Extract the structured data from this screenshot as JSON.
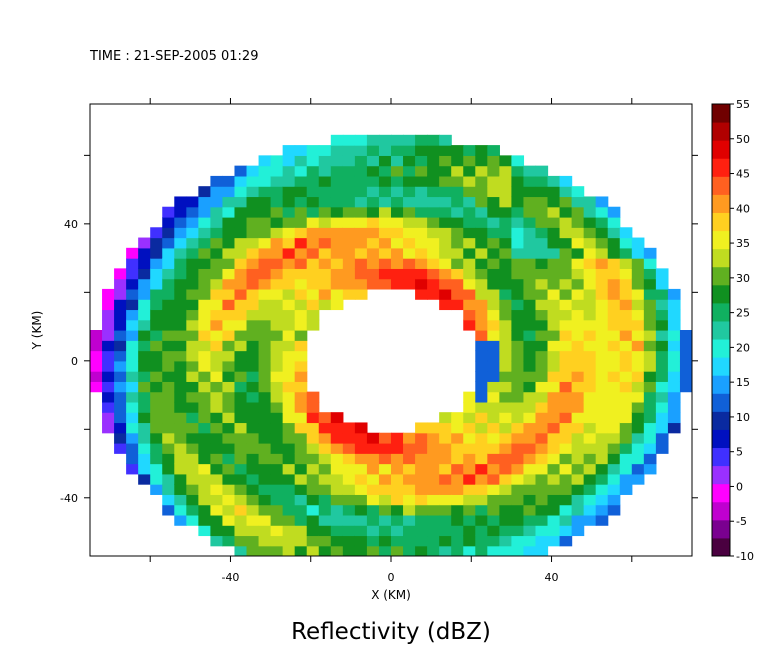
{
  "header": {
    "time_label": "TIME : 21-SEP-2005 01:29"
  },
  "chart_data": {
    "type": "heatmap",
    "title": "Reflectivity (dBZ)",
    "xlabel": "X (KM)",
    "ylabel": "Y (KM)",
    "xlim": [
      -75,
      75
    ],
    "ylim": [
      -57,
      75
    ],
    "xticks": [
      -40,
      0,
      40
    ],
    "yticks": [
      -40,
      0,
      40
    ],
    "x_minor_ticks": [
      -60,
      -40,
      -20,
      0,
      20,
      40,
      60
    ],
    "y_minor_ticks": [
      -60,
      -40,
      -20,
      0,
      20,
      40,
      60
    ],
    "grid": false,
    "colorbar": {
      "ticks": [
        55,
        50,
        45,
        40,
        35,
        30,
        25,
        20,
        15,
        10,
        5,
        0,
        -5,
        -10
      ],
      "min": -10,
      "max": 55,
      "colors": [
        "#4a0040",
        "#7a0090",
        "#c000d0",
        "#ff00ff",
        "#9a30ff",
        "#4030ff",
        "#0010c0",
        "#0a2aa0",
        "#1060d8",
        "#1aa0ff",
        "#20d8ff",
        "#22f0d8",
        "#20c8a0",
        "#10b060",
        "#109020",
        "#60b020",
        "#c0dc20",
        "#f0f020",
        "#ffd020",
        "#ff9a20",
        "#ff6020",
        "#ff2010",
        "#e00000",
        "#b00000",
        "#700000"
      ]
    },
    "field": {
      "description_units": "dBZ",
      "inner_radius_km": 22,
      "outer_radius_km_x": 74,
      "outer_radius_km_y": 66,
      "rings": [
        {
          "radius": 26,
          "value": 41
        },
        {
          "radius": 34,
          "value": 33
        },
        {
          "radius": 42,
          "value": 38
        },
        {
          "radius": 50,
          "value": 29
        },
        {
          "radius": 58,
          "value": 34
        },
        {
          "radius": 66,
          "value": 24
        },
        {
          "radius": 72,
          "value": 14
        }
      ]
    }
  }
}
